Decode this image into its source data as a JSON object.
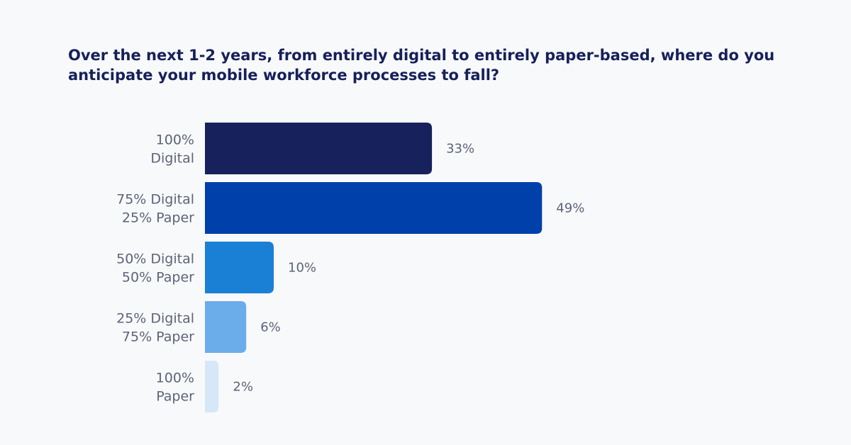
{
  "chart_data": {
    "type": "bar",
    "orientation": "horizontal",
    "title": "Over the next 1-2 years, from entirely digital to entirely paper-based, where do you anticipate your mobile workforce processes to fall?",
    "categories": [
      [
        "100%",
        "Digital"
      ],
      [
        "75% Digital",
        "25% Paper"
      ],
      [
        "50% Digital",
        "50% Paper"
      ],
      [
        "25% Digital",
        "75% Paper"
      ],
      [
        "100%",
        "Paper"
      ]
    ],
    "values": [
      33,
      49,
      10,
      6,
      2
    ],
    "value_labels": [
      "33%",
      "49%",
      "10%",
      "6%",
      "2%"
    ],
    "colors": [
      "#17215c",
      "#0040aa",
      "#1a80d6",
      "#6badeb",
      "#d6e8f7"
    ],
    "unit": "%",
    "grid": false,
    "legend": "none"
  }
}
